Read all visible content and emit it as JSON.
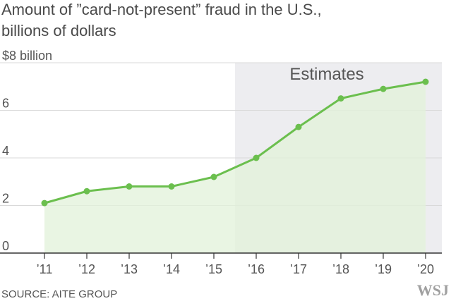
{
  "chart_data": {
    "type": "area",
    "title_line1": "Amount of ”card-not-present” fraud in the U.S.,",
    "title_line2": "billions of dollars",
    "y_top_label": "$8 billion",
    "ylim": [
      0,
      8
    ],
    "y_ticks": [
      {
        "value": 0,
        "label": "0"
      },
      {
        "value": 2,
        "label": "2"
      },
      {
        "value": 4,
        "label": "4"
      },
      {
        "value": 6,
        "label": "6"
      },
      {
        "value": 8,
        "label": "$8 billion"
      }
    ],
    "categories": [
      "’11",
      "’12",
      "’13",
      "’14",
      "’15",
      "’16",
      "’17",
      "’18",
      "’19",
      "’20"
    ],
    "years": [
      2011,
      2012,
      2013,
      2014,
      2015,
      2016,
      2017,
      2018,
      2019,
      2020
    ],
    "values": [
      2.1,
      2.6,
      2.8,
      2.8,
      3.2,
      4.0,
      5.3,
      6.5,
      6.9,
      7.2
    ],
    "estimate_start_year": 2015.5,
    "estimate_label": "Estimates",
    "source": "SOURCE: AITE GROUP",
    "logo": "WSJ",
    "colors": {
      "line": "#6bbf4e",
      "area": "#e2f2d9",
      "estimate_band": "#ededf0",
      "grid": "#d9d9d9",
      "axis": "#333333"
    }
  }
}
